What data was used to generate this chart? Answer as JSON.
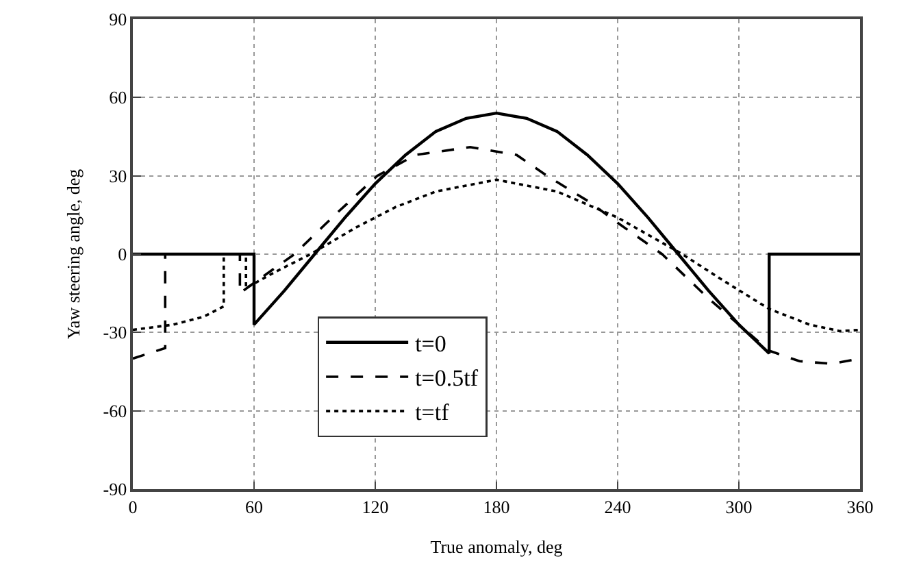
{
  "chart_data": {
    "type": "line",
    "xlabel": "True anomaly, deg",
    "ylabel": "Yaw steering angle, deg",
    "xlim": [
      0,
      360
    ],
    "xticks": [
      0,
      60,
      120,
      180,
      240,
      300,
      360
    ],
    "ylim": [
      -90,
      90
    ],
    "yticks": [
      -90,
      -60,
      -30,
      0,
      30,
      60,
      90
    ],
    "grid": true,
    "legend": "bottom",
    "marker": "none",
    "series": [
      {
        "name": "t=0",
        "color": "#000000",
        "line_style": "solid",
        "x": [
          0,
          60,
          60,
          75,
          90,
          105,
          120,
          135,
          150,
          165,
          180,
          195,
          210,
          225,
          240,
          255,
          270,
          285,
          300,
          315,
          315,
          360
        ],
        "values": [
          0,
          0,
          -27,
          -14,
          0,
          14,
          27,
          38,
          47,
          52,
          54,
          52,
          47,
          38,
          27,
          14,
          0,
          -14,
          -27,
          -38,
          0,
          0
        ]
      },
      {
        "name": "t=0.5tf",
        "color": "#000000",
        "line_style": "dashed",
        "x": [
          0,
          8,
          16,
          16,
          53,
          53,
          60,
          80,
          100,
          121,
          140,
          167,
          190,
          205,
          226,
          240,
          262,
          285,
          300,
          315,
          330,
          346,
          360
        ],
        "values": [
          -40,
          -38,
          -36,
          0,
          0,
          -15,
          -11,
          0,
          15,
          30,
          38,
          41,
          38,
          30,
          20,
          12,
          0,
          -17,
          -27,
          -37,
          -41,
          -42,
          -40
        ]
      },
      {
        "name": "t=tf",
        "color": "#000000",
        "line_style": "dotted",
        "x": [
          0,
          20,
          35,
          45,
          45,
          56,
          56,
          70,
          88,
          110,
          130,
          150,
          180,
          210,
          225,
          240,
          272,
          290,
          315,
          335,
          350,
          360
        ],
        "values": [
          -29,
          -27,
          -24,
          -20,
          0,
          0,
          -13,
          -7,
          0,
          10,
          18,
          24,
          28.5,
          24,
          19,
          14,
          0,
          -9,
          -21,
          -27,
          -29.5,
          -29
        ]
      }
    ]
  }
}
